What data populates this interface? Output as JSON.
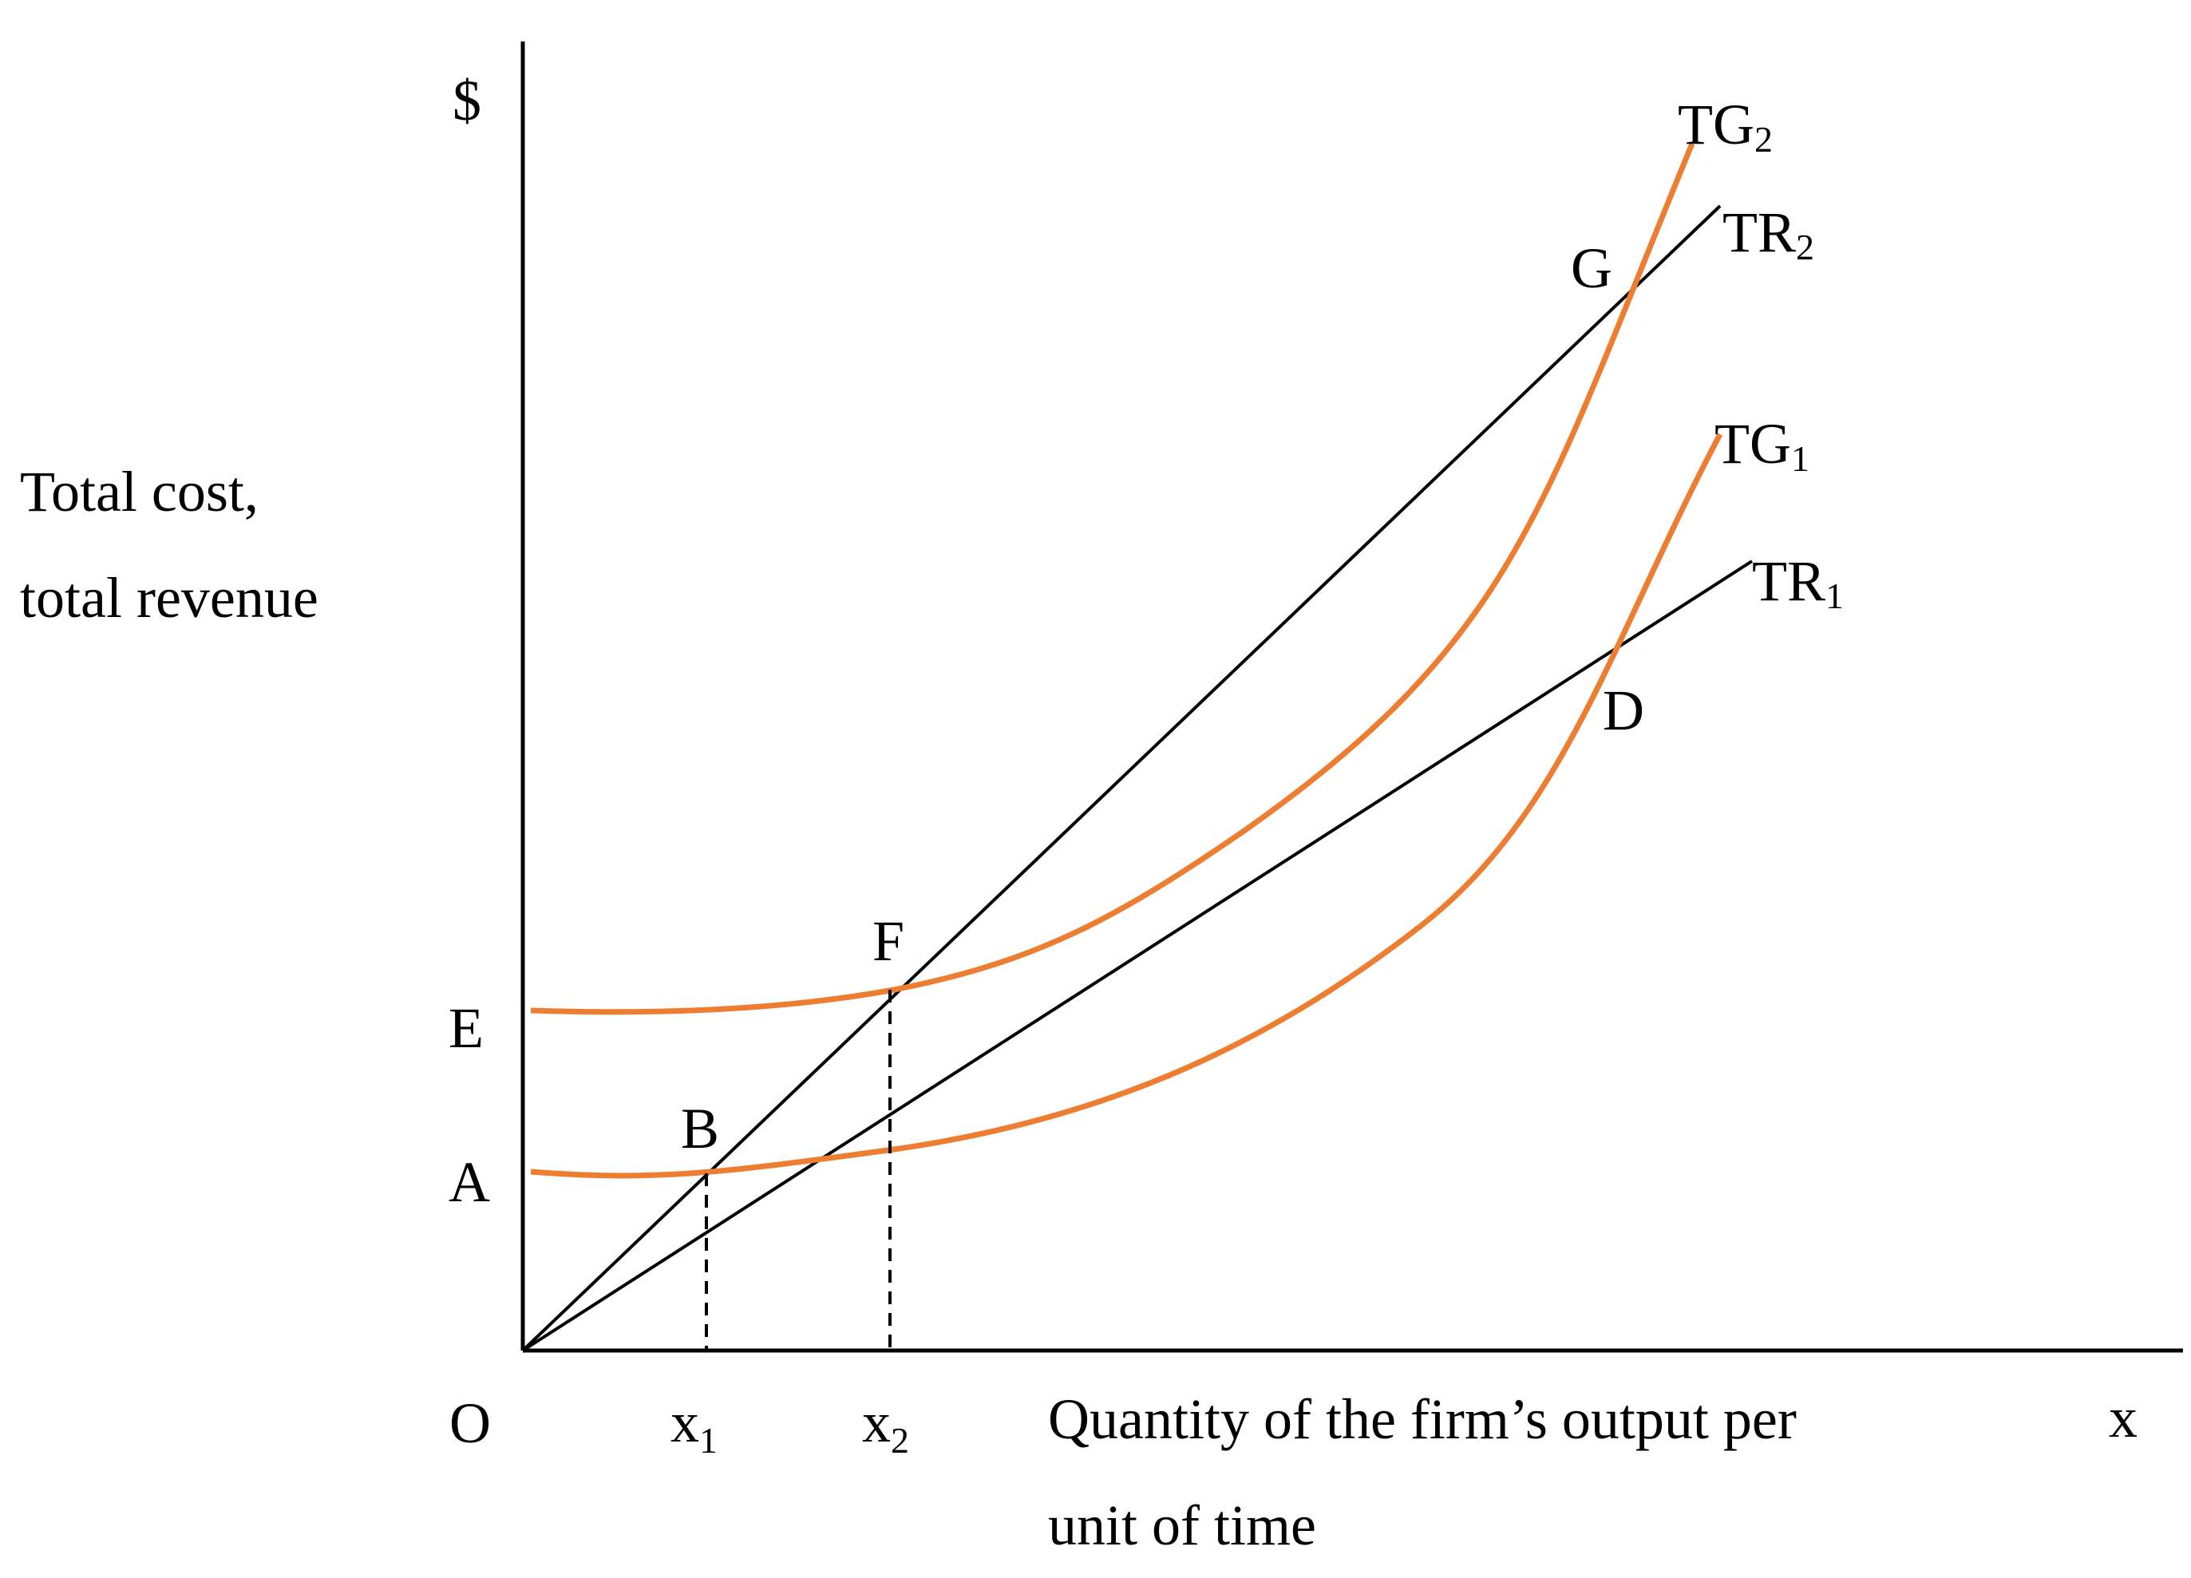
{
  "axis": {
    "y_symbol": "$",
    "y_title_line1": "Total cost,",
    "y_title_line2": "total revenue",
    "x_symbol": "x",
    "x_title_line1": "Quantity of the firm’s output per",
    "x_title_line2": "unit of time",
    "origin": "O"
  },
  "ticks": {
    "x1": {
      "base": "x",
      "sub": "1"
    },
    "x2": {
      "base": "x",
      "sub": "2"
    }
  },
  "intercepts": {
    "A": "A",
    "E": "E"
  },
  "points": {
    "B": "B",
    "D": "D",
    "F": "F",
    "G": "G"
  },
  "curves": {
    "TG1": {
      "base": "TG",
      "sub": "1",
      "color": "#ED7D31"
    },
    "TG2": {
      "base": "TG",
      "sub": "2",
      "color": "#ED7D31"
    },
    "TR1": {
      "base": "TR",
      "sub": "1",
      "color": "#000000"
    },
    "TR2": {
      "base": "TR",
      "sub": "2",
      "color": "#000000"
    }
  }
}
